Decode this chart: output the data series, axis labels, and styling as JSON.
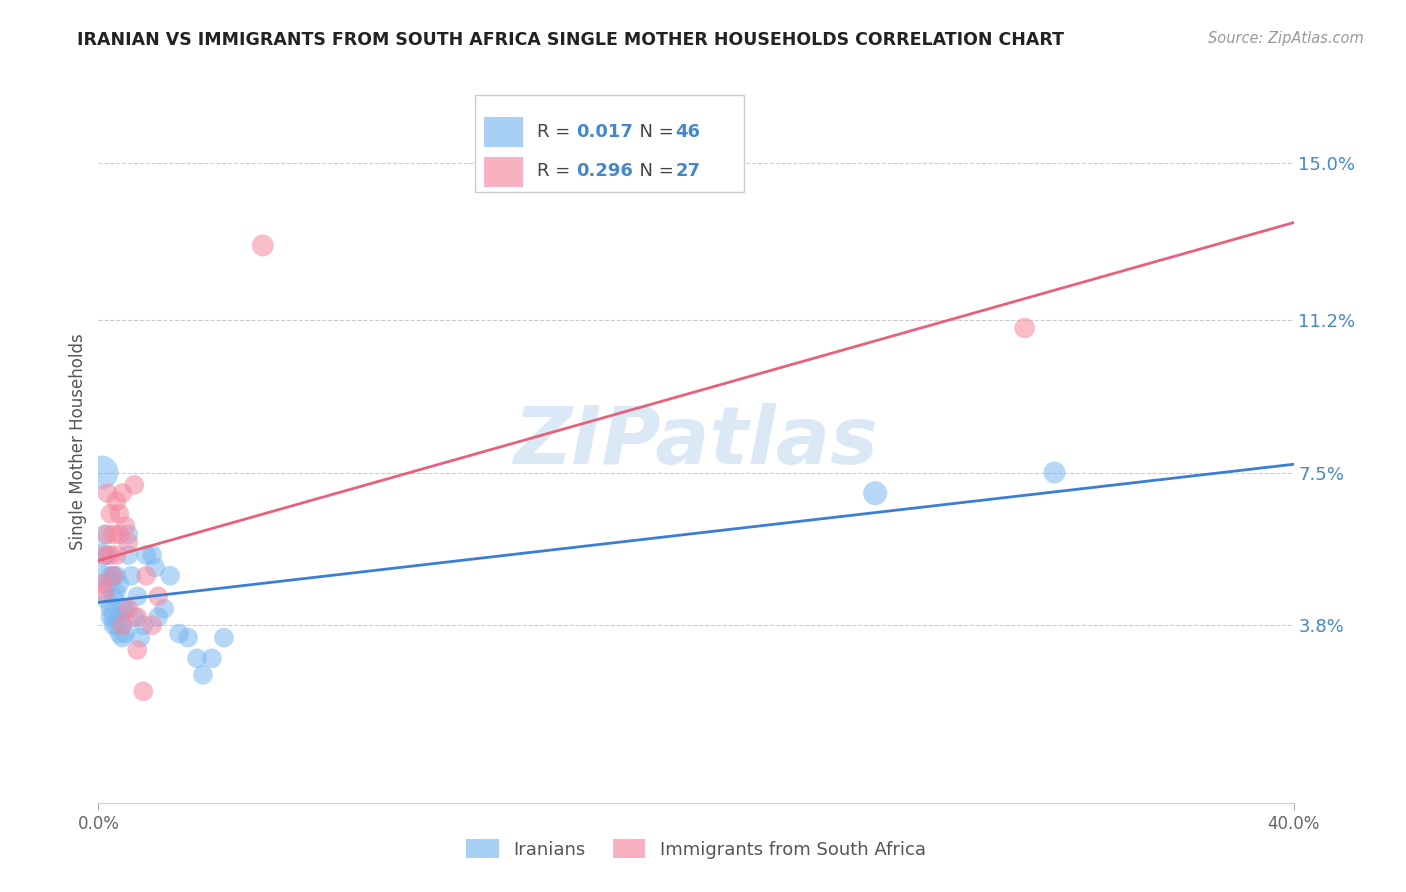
{
  "title": "IRANIAN VS IMMIGRANTS FROM SOUTH AFRICA SINGLE MOTHER HOUSEHOLDS CORRELATION CHART",
  "source": "Source: ZipAtlas.com",
  "ylabel": "Single Mother Households",
  "ytick_values": [
    0.038,
    0.075,
    0.112,
    0.15
  ],
  "ytick_labels": [
    "3.8%",
    "7.5%",
    "11.2%",
    "15.0%"
  ],
  "xlim": [
    0.0,
    0.4
  ],
  "ylim": [
    -0.005,
    0.17
  ],
  "color_blue": "#7ab8f0",
  "color_pink": "#f587a0",
  "color_blue_line": "#3a7fd4",
  "color_pink_line": "#e8607a",
  "color_text_blue": "#4488cc",
  "watermark_color": "#cce0f5",
  "R_iran": 0.017,
  "N_iran": 46,
  "R_sa": 0.296,
  "N_sa": 27,
  "iran_x": [
    0.001,
    0.001,
    0.002,
    0.002,
    0.003,
    0.003,
    0.003,
    0.004,
    0.004,
    0.004,
    0.005,
    0.005,
    0.005,
    0.005,
    0.006,
    0.006,
    0.006,
    0.007,
    0.007,
    0.007,
    0.008,
    0.008,
    0.008,
    0.009,
    0.009,
    0.01,
    0.01,
    0.011,
    0.012,
    0.013,
    0.014,
    0.015,
    0.016,
    0.018,
    0.019,
    0.02,
    0.022,
    0.024,
    0.027,
    0.03,
    0.033,
    0.035,
    0.038,
    0.042,
    0.26,
    0.32
  ],
  "iran_y": [
    0.075,
    0.055,
    0.06,
    0.05,
    0.055,
    0.048,
    0.044,
    0.05,
    0.042,
    0.04,
    0.05,
    0.045,
    0.04,
    0.038,
    0.05,
    0.046,
    0.038,
    0.048,
    0.04,
    0.036,
    0.042,
    0.038,
    0.035,
    0.042,
    0.036,
    0.06,
    0.055,
    0.05,
    0.04,
    0.045,
    0.035,
    0.038,
    0.055,
    0.055,
    0.052,
    0.04,
    0.042,
    0.05,
    0.036,
    0.035,
    0.03,
    0.026,
    0.03,
    0.035,
    0.07,
    0.075
  ],
  "iran_s": [
    600,
    300,
    200,
    200,
    200,
    200,
    200,
    200,
    200,
    200,
    200,
    200,
    200,
    200,
    200,
    200,
    200,
    200,
    200,
    200,
    200,
    200,
    200,
    200,
    200,
    200,
    200,
    200,
    200,
    200,
    200,
    200,
    200,
    200,
    200,
    200,
    200,
    200,
    200,
    200,
    200,
    200,
    200,
    200,
    300,
    250
  ],
  "sa_x": [
    0.001,
    0.002,
    0.002,
    0.003,
    0.003,
    0.004,
    0.004,
    0.005,
    0.005,
    0.006,
    0.006,
    0.007,
    0.007,
    0.008,
    0.008,
    0.009,
    0.01,
    0.01,
    0.012,
    0.013,
    0.013,
    0.015,
    0.016,
    0.018,
    0.02,
    0.055,
    0.31
  ],
  "sa_y": [
    0.048,
    0.055,
    0.046,
    0.07,
    0.06,
    0.065,
    0.055,
    0.06,
    0.05,
    0.068,
    0.055,
    0.065,
    0.06,
    0.07,
    0.038,
    0.062,
    0.058,
    0.042,
    0.072,
    0.04,
    0.032,
    0.022,
    0.05,
    0.038,
    0.045,
    0.13,
    0.11
  ],
  "sa_s": [
    200,
    200,
    200,
    200,
    200,
    200,
    200,
    200,
    200,
    200,
    200,
    200,
    200,
    200,
    200,
    200,
    200,
    200,
    200,
    200,
    200,
    200,
    200,
    200,
    200,
    250,
    220
  ]
}
